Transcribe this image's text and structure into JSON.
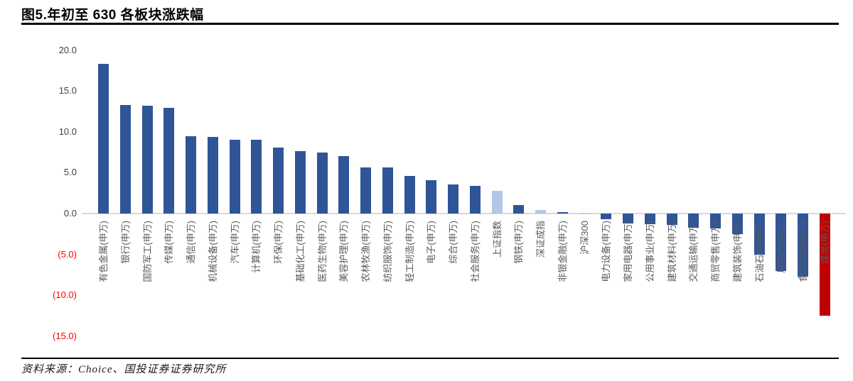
{
  "page": {
    "title": "图5.年初至 630 各板块涨跌幅",
    "source": "资料来源：Choice、国投证券证券研究所"
  },
  "colors": {
    "sector_bar": "#2F5597",
    "index_bar": "#B4C6E7",
    "coal_bar": "#C00000",
    "axis_line": "#D9D9D9",
    "tick_positive": "#404040",
    "tick_negative": "#FF0000",
    "category_label": "#595959"
  },
  "chart_data": {
    "type": "bar",
    "title": "图5.年初至 630 各板块涨跌幅",
    "xlabel": "",
    "ylabel": "",
    "ylim": [
      -15,
      20
    ],
    "grid": false,
    "legend": "none",
    "yticks": [
      {
        "value": 20,
        "label": "20.0"
      },
      {
        "value": 15,
        "label": "15.0"
      },
      {
        "value": 10,
        "label": "10.0"
      },
      {
        "value": 5,
        "label": "5.0"
      },
      {
        "value": 0,
        "label": "0.0"
      },
      {
        "value": -5,
        "label": "(5.0)"
      },
      {
        "value": -10,
        "label": "(10.0)"
      },
      {
        "value": -15,
        "label": "(15.0)"
      }
    ],
    "bars": [
      {
        "category": "有色金属(申万)",
        "value": 18.3,
        "color": "sector_bar"
      },
      {
        "category": "银行(申万)",
        "value": 13.3,
        "color": "sector_bar"
      },
      {
        "category": "国防军工(申万)",
        "value": 13.2,
        "color": "sector_bar"
      },
      {
        "category": "传媒(申万)",
        "value": 12.9,
        "color": "sector_bar"
      },
      {
        "category": "通信(申万)",
        "value": 9.5,
        "color": "sector_bar"
      },
      {
        "category": "机械设备(申万)",
        "value": 9.4,
        "color": "sector_bar"
      },
      {
        "category": "汽车(申万)",
        "value": 9.0,
        "color": "sector_bar"
      },
      {
        "category": "计算机(申万)",
        "value": 9.0,
        "color": "sector_bar"
      },
      {
        "category": "环保(申万)",
        "value": 8.1,
        "color": "sector_bar"
      },
      {
        "category": "基础化工(申万)",
        "value": 7.6,
        "color": "sector_bar"
      },
      {
        "category": "医药生物(申万)",
        "value": 7.5,
        "color": "sector_bar"
      },
      {
        "category": "美容护理(申万)",
        "value": 7.0,
        "color": "sector_bar"
      },
      {
        "category": "农林牧渔(申万)",
        "value": 5.6,
        "color": "sector_bar"
      },
      {
        "category": "纺织服饰(申万)",
        "value": 5.6,
        "color": "sector_bar"
      },
      {
        "category": "轻工制造(申万)",
        "value": 4.6,
        "color": "sector_bar"
      },
      {
        "category": "电子(申万)",
        "value": 4.1,
        "color": "sector_bar"
      },
      {
        "category": "综合(申万)",
        "value": 3.6,
        "color": "sector_bar"
      },
      {
        "category": "社会服务(申万)",
        "value": 3.4,
        "color": "sector_bar"
      },
      {
        "category": "上证指数",
        "value": 2.8,
        "color": "index_bar"
      },
      {
        "category": "钢铁(申万)",
        "value": 1.0,
        "color": "sector_bar"
      },
      {
        "category": "深证成指",
        "value": 0.4,
        "color": "index_bar"
      },
      {
        "category": "非银金融(申万)",
        "value": 0.2,
        "color": "sector_bar"
      },
      {
        "category": "沪深300",
        "value": 0.1,
        "color": "index_bar"
      },
      {
        "category": "电力设备(申万)",
        "value": -0.7,
        "color": "sector_bar"
      },
      {
        "category": "家用电器(申万)",
        "value": -1.2,
        "color": "sector_bar"
      },
      {
        "category": "公用事业(申万)",
        "value": -1.3,
        "color": "sector_bar"
      },
      {
        "category": "建筑材料(申万)",
        "value": -1.4,
        "color": "sector_bar"
      },
      {
        "category": "交通运输(申万)",
        "value": -1.7,
        "color": "sector_bar"
      },
      {
        "category": "商贸零售(申万)",
        "value": -1.8,
        "color": "sector_bar"
      },
      {
        "category": "建筑装饰(申万)",
        "value": -2.5,
        "color": "sector_bar"
      },
      {
        "category": "石油石化(申万)",
        "value": -5.0,
        "color": "sector_bar"
      },
      {
        "category": "房地产(申万)",
        "value": -7.0,
        "color": "sector_bar"
      },
      {
        "category": "食品饮料(申万)",
        "value": -7.7,
        "color": "sector_bar"
      },
      {
        "category": "煤炭(申万)",
        "value": -12.5,
        "color": "coal_bar"
      }
    ]
  }
}
